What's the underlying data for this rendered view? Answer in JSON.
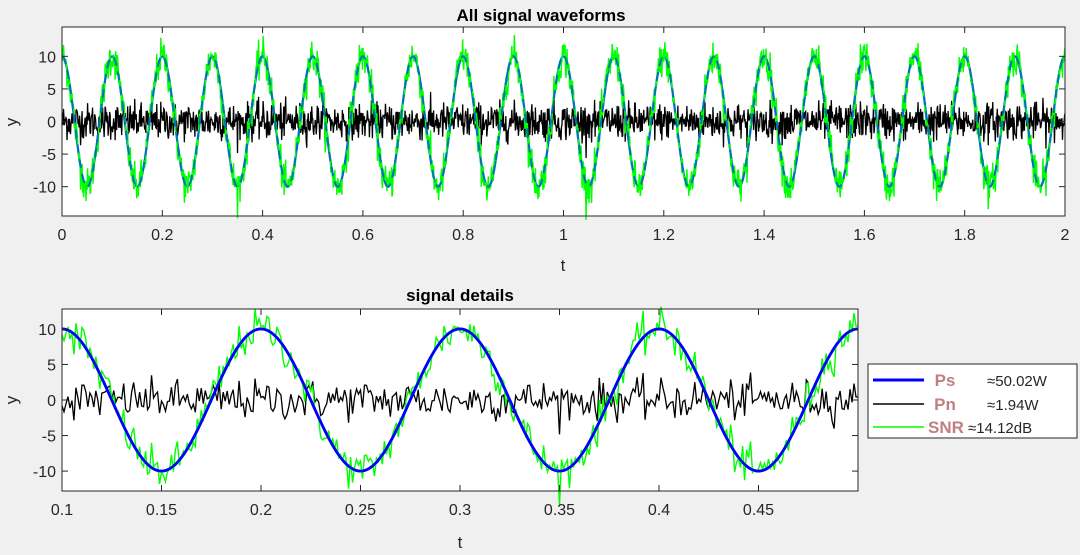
{
  "chart_data": [
    {
      "type": "line",
      "title": "All signal waveforms",
      "xlabel": "t",
      "ylabel": "y",
      "xlim": [
        0,
        2
      ],
      "ylim": [
        -14.5,
        14.5
      ],
      "xticks": [
        0,
        0.2,
        0.4,
        0.6,
        0.8,
        1,
        1.2,
        1.4,
        1.6,
        1.8,
        2
      ],
      "xtick_labels": [
        "0",
        "0.2",
        "0.4",
        "0.6",
        "0.8",
        "1",
        "1.2",
        "1.4",
        "1.6",
        "1.8",
        "2"
      ],
      "yticks": [
        10,
        5,
        0,
        -5,
        -10
      ],
      "ytick_labels": [
        "10",
        "5",
        "0",
        "-5",
        "-10"
      ],
      "grid": false,
      "series": [
        {
          "role": "signal",
          "color": "#0072bd",
          "style": "dashed",
          "amplitude": 10,
          "frequency_hz": 10
        },
        {
          "role": "noise",
          "color": "#000000",
          "style": "solid",
          "std": 1.39
        },
        {
          "role": "signal_plus_noise",
          "color": "#00ff00",
          "style": "solid"
        }
      ]
    },
    {
      "type": "line",
      "title": "signal details",
      "xlabel": "t",
      "ylabel": "y",
      "xlim": [
        0.1,
        0.5
      ],
      "ylim": [
        -12.8,
        12.8
      ],
      "xticks": [
        0.1,
        0.15,
        0.2,
        0.25,
        0.3,
        0.35,
        0.4,
        0.45
      ],
      "xtick_labels": [
        "0.1",
        "0.15",
        "0.2",
        "0.25",
        "0.3",
        "0.35",
        "0.4",
        "0.45"
      ],
      "yticks": [
        10,
        5,
        0,
        -5,
        -10
      ],
      "ytick_labels": [
        "10",
        "5",
        "0",
        "-5",
        "-10"
      ],
      "grid": false,
      "legend": "outside-right",
      "series": [
        {
          "name": "Ps",
          "value": "≈50.02W",
          "color": "#0000ff",
          "style": "solid"
        },
        {
          "name": "Pn",
          "value": "≈1.94W",
          "color": "#000000",
          "style": "solid"
        },
        {
          "name": "SNR",
          "value": "≈14.12dB",
          "color": "#00ff00",
          "style": "solid"
        }
      ]
    }
  ]
}
